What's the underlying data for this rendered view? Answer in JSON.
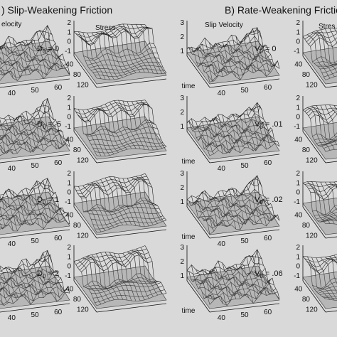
{
  "panels": [
    {
      "title": ") Slip-Weakening Friction",
      "column_labels": [
        "elocity",
        "Stress"
      ],
      "params": [
        {
          "var": "D",
          "sub": "0",
          "eq": " = 0"
        },
        {
          "var": "D",
          "sub": "0",
          "eq": " = .5"
        },
        {
          "var": "D",
          "sub": "0",
          "eq": " = 1"
        },
        {
          "var": "D",
          "sub": "0",
          "eq": " = 2"
        }
      ]
    },
    {
      "title": "B) Rate-Weakening Frictio",
      "column_labels": [
        "Slip Velocity",
        "Stres"
      ],
      "params": [
        {
          "var": "V",
          "sub": "0",
          "eq": " = 0"
        },
        {
          "var": "V",
          "sub": "0",
          "eq": " = .01"
        },
        {
          "var": "V",
          "sub": "0",
          "eq": " = .02"
        },
        {
          "var": "V",
          "sub": "0",
          "eq": " = .06"
        }
      ]
    }
  ],
  "axes": {
    "stress_ticks": [
      2,
      1,
      0,
      -1
    ],
    "velocity_ticks": [
      3,
      2,
      1
    ],
    "x_ticks": [
      40,
      50,
      60
    ],
    "time_ticks": [
      40,
      80,
      120
    ],
    "time_label": "time"
  }
}
